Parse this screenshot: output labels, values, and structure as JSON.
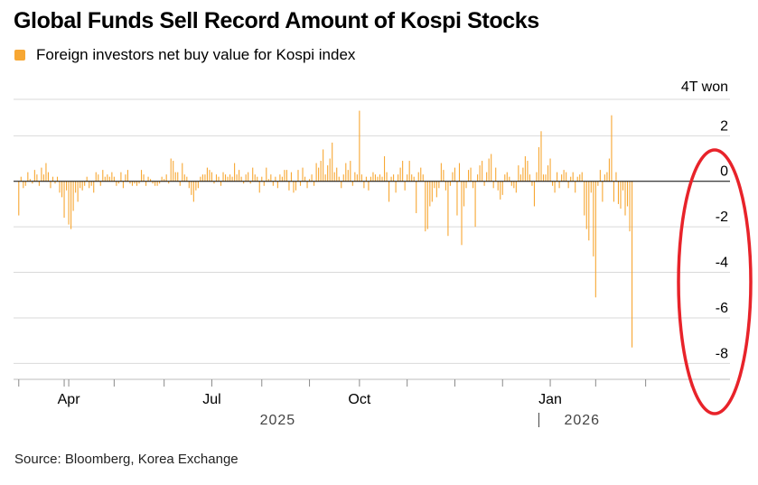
{
  "title": "Global Funds Sell Record Amount of Kospi Stocks",
  "legend": {
    "label": "Foreign investors net buy value for Kospi index"
  },
  "source": "Source: Bloomberg, Korea Exchange",
  "colors": {
    "bar": "#f7a733",
    "annotation": "#e8232a",
    "grid": "#d9d9d9",
    "zero_line": "#000000"
  },
  "chart_data": {
    "type": "bar",
    "title": "Global Funds Sell Record Amount of Kospi Stocks",
    "series": [
      {
        "name": "Foreign investors net buy value for Kospi index"
      }
    ],
    "unit": "4T won",
    "ylim": [
      -8.7,
      3.6
    ],
    "yticks": [
      2,
      0,
      -2,
      -4,
      -6,
      -8
    ],
    "ytick_labels": [
      "2",
      "0",
      "-2",
      "-4",
      "-6",
      "-8"
    ],
    "y_unit_label": "4T won",
    "x_range": [
      -1.5,
      302
    ],
    "month_ticks": [
      0,
      20,
      22,
      42,
      64,
      85,
      107,
      128,
      150,
      171,
      192,
      213,
      234,
      254,
      276,
      296
    ],
    "month_labels": [
      {
        "text": "Apr",
        "index": 22
      },
      {
        "text": "Jul",
        "index": 85
      },
      {
        "text": "Oct",
        "index": 150
      },
      {
        "text": "Jan",
        "index": 234
      }
    ],
    "year_labels": [
      {
        "text": "2025",
        "index": 114
      },
      {
        "text": "2026",
        "index": 248
      }
    ],
    "year_divider_index": 229,
    "values": [
      -1.5,
      0.2,
      -0.3,
      -0.2,
      0.4,
      0.1,
      -0.1,
      0.5,
      0.3,
      -0.2,
      0.6,
      0.3,
      0.8,
      0.4,
      -0.3,
      0.2,
      -0.1,
      0.2,
      -0.5,
      -0.7,
      -1.6,
      -0.4,
      -1.9,
      -2.1,
      -1.3,
      -0.5,
      -0.9,
      -0.3,
      -0.4,
      -0.2,
      0.2,
      -0.3,
      -0.2,
      -0.5,
      0.4,
      0.3,
      -0.2,
      0.5,
      0.2,
      0.3,
      0.2,
      0.4,
      0.2,
      -0.2,
      -0.1,
      0.4,
      -0.3,
      0.3,
      0.5,
      -0.1,
      -0.2,
      -0.1,
      -0.2,
      -0.1,
      0.5,
      0.3,
      -0.2,
      0.2,
      0.1,
      -0.1,
      -0.2,
      -0.2,
      -0.1,
      0.2,
      0.1,
      0.3,
      -0.1,
      1.0,
      0.9,
      0.4,
      0.4,
      -0.2,
      0.8,
      0.3,
      0.2,
      -0.3,
      -0.6,
      -0.9,
      -0.4,
      -0.3,
      0.2,
      0.3,
      0.3,
      0.6,
      0.5,
      0.4,
      -0.1,
      0.3,
      0.2,
      -0.2,
      0.4,
      0.3,
      0.2,
      0.3,
      0.2,
      0.8,
      0.3,
      0.5,
      0.2,
      -0.1,
      0.3,
      0.4,
      -0.1,
      0.6,
      0.3,
      0.2,
      -0.5,
      0.2,
      -0.2,
      0.6,
      0.1,
      0.3,
      -0.2,
      0.2,
      -0.3,
      0.3,
      0.2,
      0.5,
      0.5,
      -0.4,
      0.4,
      -0.5,
      -0.4,
      0.5,
      -0.2,
      0.6,
      0.2,
      -0.3,
      0.1,
      0.3,
      -0.2,
      0.8,
      0.6,
      0.9,
      1.4,
      0.3,
      0.7,
      1.0,
      1.7,
      0.4,
      0.6,
      0.2,
      -0.3,
      0.3,
      0.8,
      0.5,
      0.9,
      -0.2,
      0.4,
      0.3,
      3.1,
      0.3,
      -0.3,
      0.2,
      -0.4,
      0.2,
      0.4,
      0.3,
      0.2,
      0.3,
      0.2,
      1.1,
      0.4,
      -0.9,
      0.2,
      0.3,
      -0.5,
      0.3,
      0.6,
      0.9,
      -0.4,
      0.3,
      0.9,
      0.3,
      0.2,
      -1.4,
      0.4,
      0.6,
      0.3,
      -2.2,
      -2.1,
      -1.1,
      -0.9,
      -0.3,
      -0.7,
      -0.3,
      0.8,
      0.5,
      -0.4,
      -2.4,
      -0.2,
      0.4,
      0.6,
      -1.5,
      0.8,
      -2.8,
      -1.1,
      -0.3,
      0.5,
      0.6,
      -0.3,
      -2.0,
      0.3,
      0.7,
      0.9,
      -0.2,
      0.4,
      1.0,
      1.2,
      -0.3,
      0.6,
      -0.4,
      -0.8,
      -0.6,
      0.3,
      0.4,
      0.2,
      -0.2,
      -0.3,
      -0.5,
      0.7,
      0.3,
      0.6,
      1.1,
      0.9,
      0.3,
      -0.2,
      -1.1,
      0.4,
      1.5,
      2.2,
      0.3,
      0.3,
      0.7,
      1.0,
      -0.2,
      -0.5,
      0.4,
      -0.3,
      0.3,
      0.5,
      0.4,
      -0.3,
      0.2,
      0.4,
      -0.5,
      0.2,
      0.3,
      0.4,
      -1.5,
      -2.1,
      -2.6,
      -0.5,
      -3.3,
      -5.1,
      -0.2,
      0.5,
      -0.9,
      0.3,
      0.4,
      1.0,
      2.9,
      -0.9,
      0.4,
      -1.0,
      -1.2,
      -0.4,
      -1.5,
      -1.1,
      -2.2,
      -7.3
    ],
    "annotations": [
      {
        "type": "ellipse",
        "target": "last sessions"
      }
    ]
  }
}
